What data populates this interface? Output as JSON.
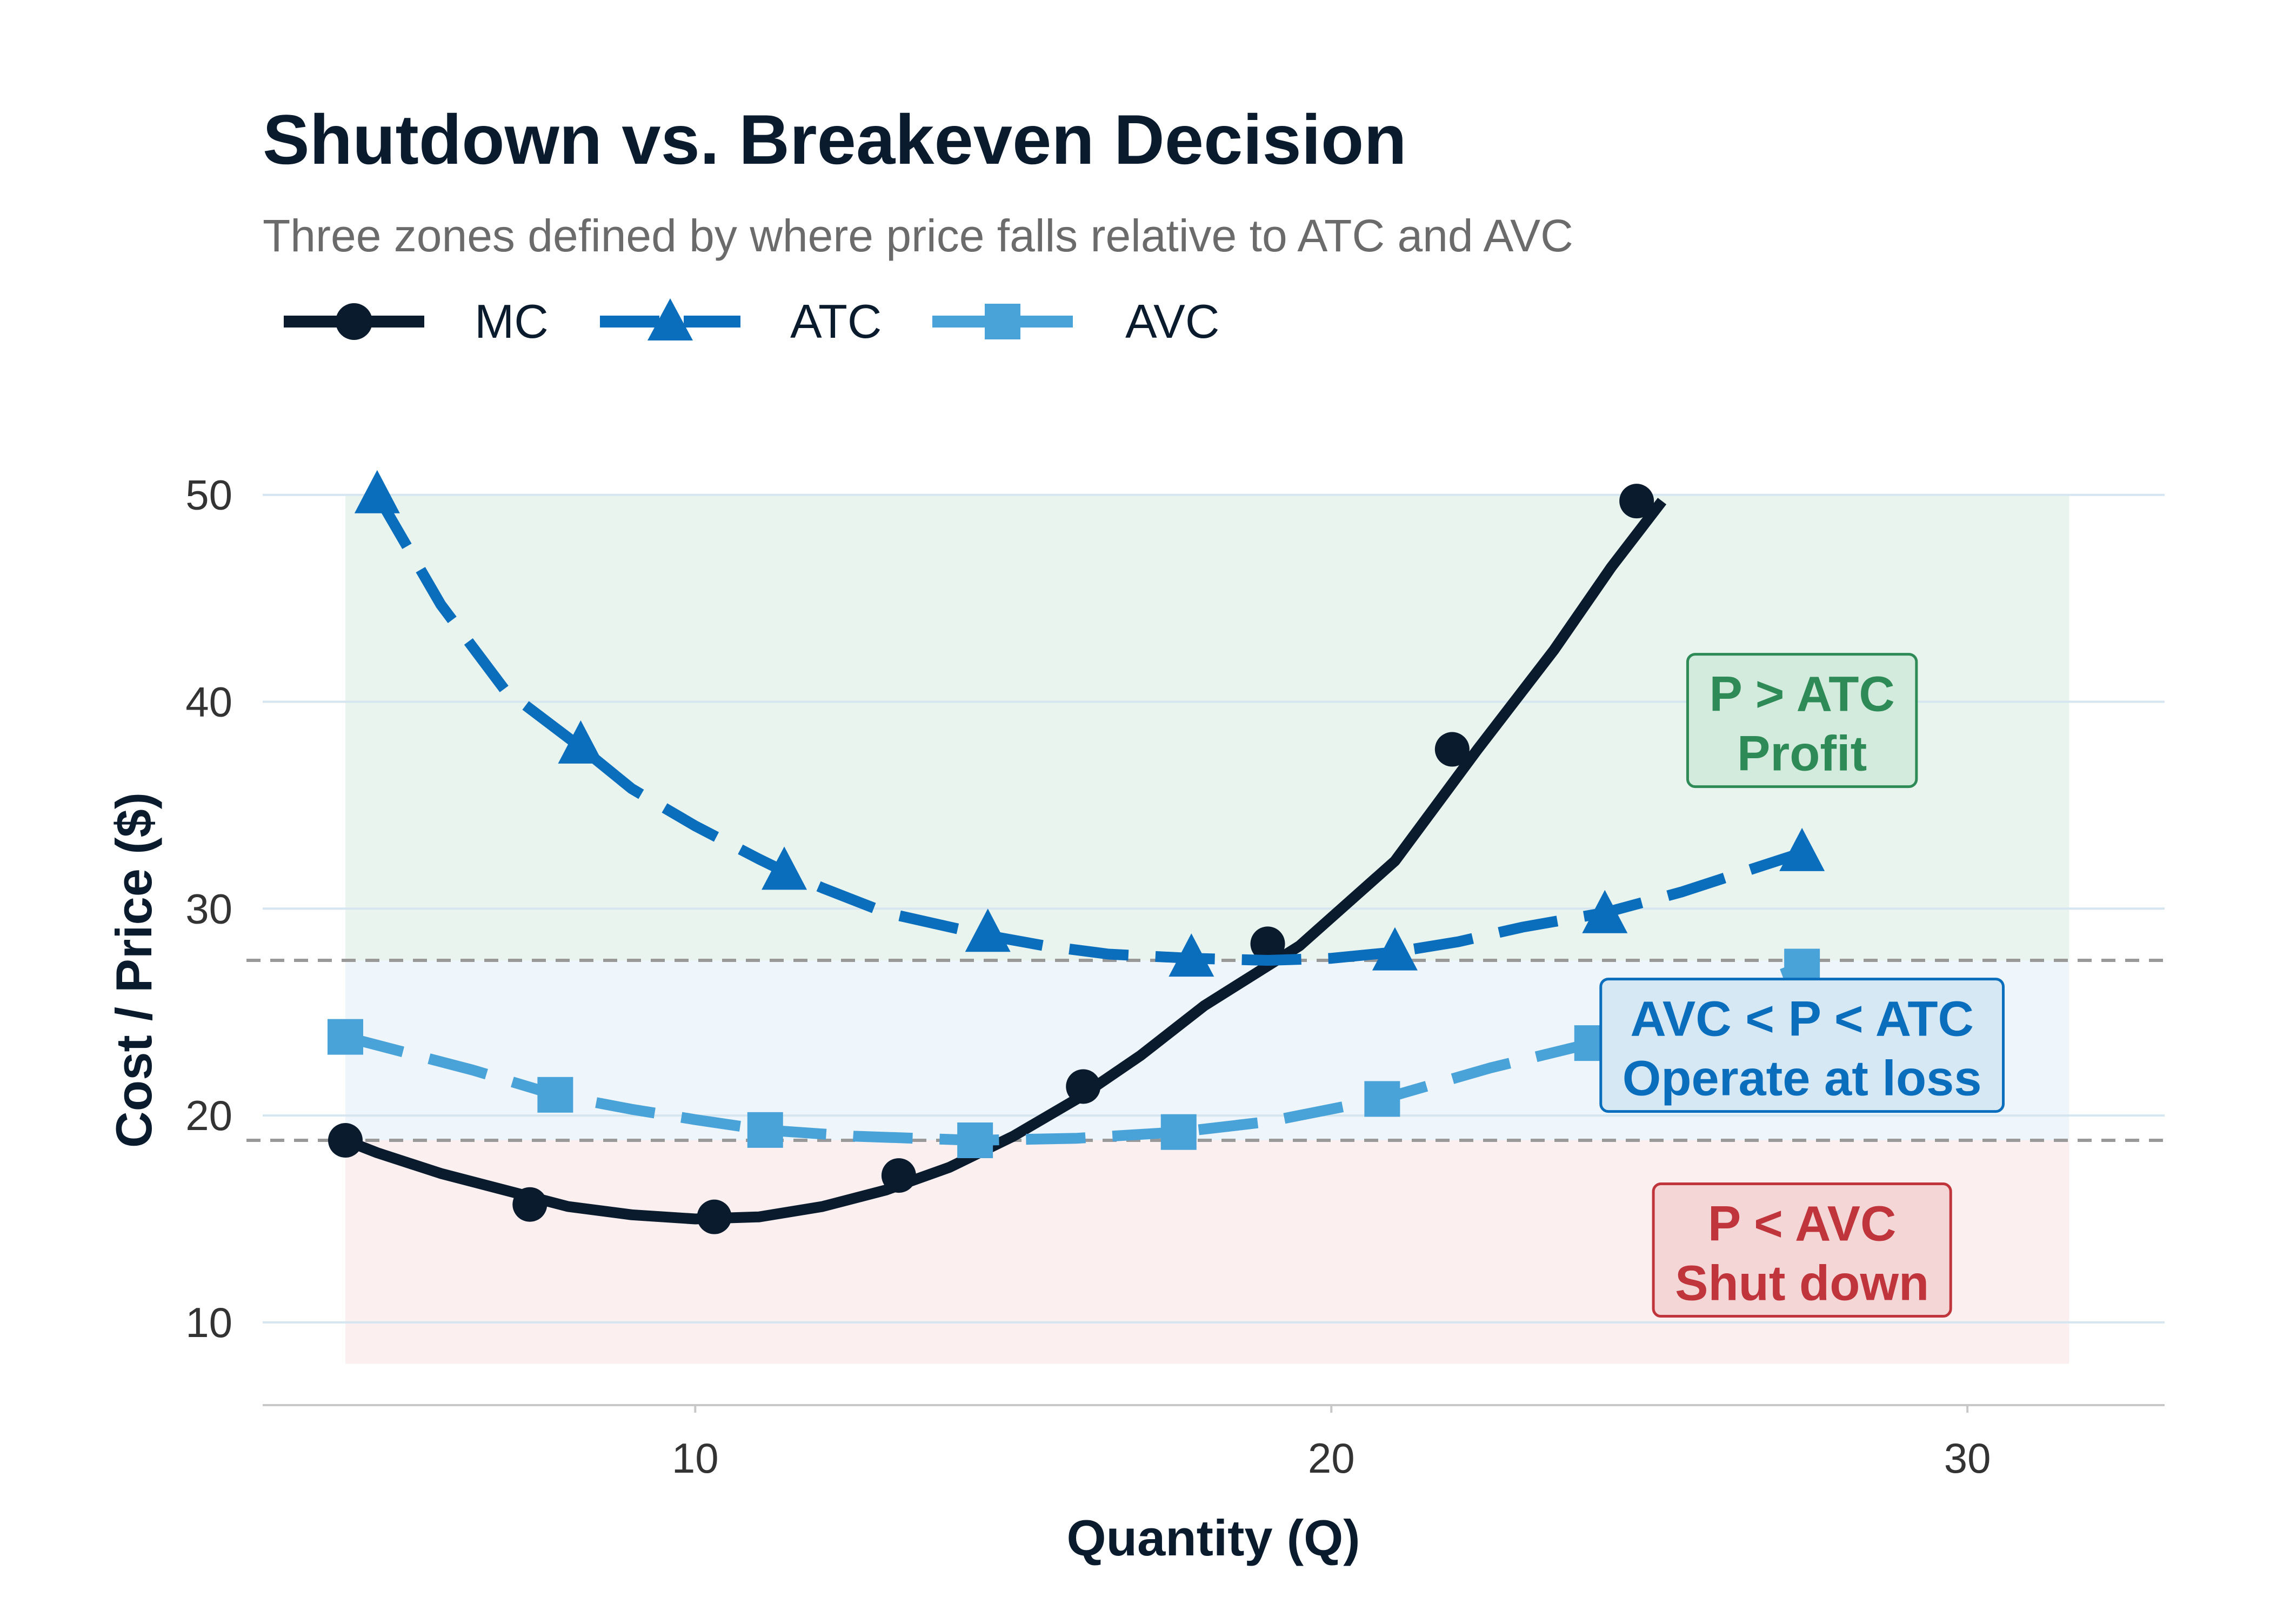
{
  "chart_data": {
    "type": "line",
    "title": "Shutdown vs. Breakeven Decision",
    "subtitle": "Three zones defined by where price falls relative to ATC and AVC",
    "xlabel": "Quantity (Q)",
    "ylabel": "Cost / Price ($)",
    "xlim": [
      3.2,
      33.1
    ],
    "ylim": [
      6.0,
      52.5
    ],
    "x_ticks": [
      10,
      20,
      30
    ],
    "y_ticks": [
      10,
      20,
      30,
      40,
      50
    ],
    "grid": "horizontal",
    "legend_position": "top-left",
    "series": [
      {
        "name": "MC",
        "color": "#0b1b2e",
        "marker": "circle",
        "line_style": "solid",
        "points": [
          [
            4.5,
            18.8
          ],
          [
            5,
            18.2
          ],
          [
            6,
            17.2
          ],
          [
            7,
            16.4
          ],
          [
            8,
            15.6
          ],
          [
            9,
            15.2
          ],
          [
            10,
            15.0
          ],
          [
            11,
            15.1
          ],
          [
            12,
            15.6
          ],
          [
            13,
            16.4
          ],
          [
            14,
            17.5
          ],
          [
            15,
            19.0
          ],
          [
            16,
            20.8
          ],
          [
            17,
            22.9
          ],
          [
            18,
            25.3
          ],
          [
            19.5,
            28.2
          ],
          [
            21,
            32.3
          ],
          [
            22.3,
            37.7
          ],
          [
            23.5,
            42.5
          ],
          [
            24.4,
            46.5
          ],
          [
            25.2,
            49.7
          ]
        ],
        "markers": [
          [
            4.5,
            18.8
          ],
          [
            7.4,
            15.7
          ],
          [
            10.3,
            15.1
          ],
          [
            13.2,
            17.1
          ],
          [
            16.1,
            21.4
          ],
          [
            19.0,
            28.3
          ],
          [
            21.9,
            37.7
          ],
          [
            24.8,
            49.7
          ]
        ]
      },
      {
        "name": "ATC",
        "color": "#0a6ebd",
        "marker": "triangle",
        "line_style": "dashed",
        "points": [
          [
            5.0,
            50.0
          ],
          [
            6,
            44.7
          ],
          [
            7,
            40.6
          ],
          [
            8.2,
            37.8
          ],
          [
            9,
            35.8
          ],
          [
            10,
            34.0
          ],
          [
            11,
            32.4
          ],
          [
            11.4,
            31.8
          ],
          [
            12,
            31.0
          ],
          [
            13,
            29.8
          ],
          [
            14.6,
            28.7
          ],
          [
            15.5,
            28.2
          ],
          [
            16.5,
            27.8
          ],
          [
            17.8,
            27.6
          ],
          [
            19,
            27.5
          ],
          [
            20.0,
            27.6
          ],
          [
            21.0,
            27.9
          ],
          [
            22,
            28.4
          ],
          [
            23,
            29.1
          ],
          [
            24.3,
            29.8
          ],
          [
            25.5,
            30.8
          ],
          [
            26.5,
            31.8
          ],
          [
            27.4,
            32.7
          ]
        ],
        "markers": [
          [
            5.0,
            50.0
          ],
          [
            8.2,
            37.9
          ],
          [
            11.4,
            31.8
          ],
          [
            14.6,
            28.8
          ],
          [
            17.8,
            27.6
          ],
          [
            21.0,
            27.9
          ],
          [
            24.3,
            29.7
          ],
          [
            27.4,
            32.7
          ]
        ]
      },
      {
        "name": "AVC",
        "color": "#4aa3d8",
        "marker": "square",
        "line_style": "dashed",
        "points": [
          [
            4.5,
            23.8
          ],
          [
            5.5,
            23.0
          ],
          [
            6.5,
            22.2
          ],
          [
            7.8,
            21.0
          ],
          [
            9,
            20.3
          ],
          [
            10,
            19.8
          ],
          [
            11.1,
            19.3
          ],
          [
            12.5,
            19.0
          ],
          [
            14.4,
            18.8
          ],
          [
            16,
            18.9
          ],
          [
            17.6,
            19.2
          ],
          [
            19,
            19.7
          ],
          [
            20.8,
            20.8
          ],
          [
            22.5,
            22.3
          ],
          [
            24.1,
            23.5
          ],
          [
            25.5,
            25.0
          ],
          [
            27.4,
            27.2
          ]
        ],
        "markers": [
          [
            4.5,
            23.8
          ],
          [
            7.8,
            21.0
          ],
          [
            11.1,
            19.3
          ],
          [
            14.4,
            18.8
          ],
          [
            17.6,
            19.2
          ],
          [
            20.8,
            20.8
          ],
          [
            24.1,
            23.5
          ],
          [
            27.4,
            27.2
          ]
        ]
      }
    ],
    "reference_lines": [
      {
        "y": 27.5,
        "color": "#999999",
        "style": "dashed"
      },
      {
        "y": 18.8,
        "color": "#999999",
        "style": "dashed"
      }
    ],
    "zones": [
      {
        "y0": 27.5,
        "y1": 50.0,
        "x0": 4.5,
        "x1": 31.6,
        "fill": "#e9f4ee",
        "label_line1": "P > ATC",
        "label_line2": "Profit",
        "text_color": "#2e8b57",
        "box_fill": "#d3ebdc",
        "box_stroke": "#2e8b57",
        "label_x": 27.4,
        "label_y": 38.9
      },
      {
        "y0": 18.8,
        "y1": 27.5,
        "x0": 4.5,
        "x1": 31.6,
        "fill": "#eef5fb",
        "label_line1": "AVC < P < ATC",
        "label_line2": "Operate at loss",
        "text_color": "#0a6ebd",
        "box_fill": "#d5e8f4",
        "box_stroke": "#0a6ebd",
        "label_x": 27.4,
        "label_y": 23.2
      },
      {
        "y0": 8.0,
        "y1": 18.8,
        "x0": 4.5,
        "x1": 31.6,
        "fill": "#fbf0ef",
        "label_line1": "P < AVC",
        "label_line2": "Shut down",
        "text_color": "#c0353b",
        "box_fill": "#f5d6d7",
        "box_stroke": "#c0353b",
        "label_x": 27.4,
        "label_y": 13.3
      }
    ]
  }
}
